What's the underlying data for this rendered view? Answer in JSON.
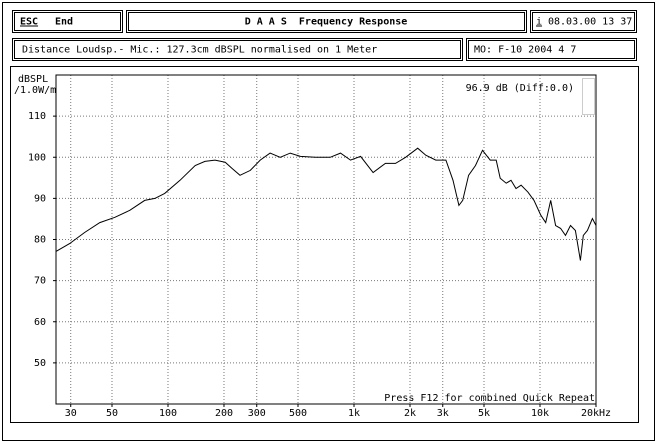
{
  "header": {
    "esc": "ESC",
    "end": "End",
    "title": "D A A S  Frequency Response",
    "info_icon": "i",
    "datetime": "08.03.00 13 37"
  },
  "info": {
    "distance": "Distance Loudsp.- Mic.: 127.3cm dBSPL normalised on 1 Meter",
    "mo": "MO: F-10 2004 4 7"
  },
  "chart_data": {
    "type": "line",
    "y_label": "dBSPL",
    "y_label_unit": "/1.0W/m",
    "annotation": "96.9 dB (Diff:0.0)",
    "footnote": "Press F12 for combined Quick Repeat",
    "x": [
      25,
      29.6,
      35.6,
      43,
      51.8,
      62.3,
      75,
      85,
      96,
      116,
      140,
      158,
      179,
      203,
      221,
      244,
      277,
      313,
      354,
      401,
      454,
      515,
      620,
      745,
      846,
      958,
      1085,
      1267,
      1476,
      1672,
      1894,
      2201,
      2431,
      2754,
      3118,
      3405,
      3665,
      3839,
      4132,
      4500,
      4906,
      5400,
      5812,
      6110,
      6578,
      6980,
      7432,
      7910,
      8617,
      9283,
      10100,
      10730,
      11410,
      12130,
      12900,
      13710,
      14580,
      15500,
      16480,
      17100,
      17980,
      19130,
      20000
    ],
    "series": [
      {
        "name": "Response",
        "color": "#000000",
        "values": [
          77.1,
          79,
          81.7,
          84.1,
          85.4,
          87.1,
          89.5,
          90,
          91.2,
          94.4,
          98,
          99,
          99.3,
          98.8,
          97.3,
          95.6,
          96.8,
          99.3,
          101,
          100,
          101,
          100.2,
          100,
          100,
          101,
          99.3,
          100.2,
          96.3,
          98.5,
          98.5,
          100,
          102.2,
          100.5,
          99.3,
          99.3,
          94.4,
          88.3,
          89.5,
          95.6,
          98,
          101.7,
          99.3,
          99.3,
          94.9,
          93.7,
          94.4,
          92.4,
          93.2,
          91.5,
          89.5,
          85.9,
          84.1,
          89.5,
          83.4,
          82.7,
          81,
          83.4,
          82.2,
          74.9,
          81,
          82.2,
          85.1,
          83.4
        ]
      }
    ],
    "xscale": "log",
    "xlim": [
      25,
      20000
    ],
    "xticks": [
      30,
      50,
      100,
      200,
      300,
      500,
      {
        "value": 1000,
        "label": "1k"
      },
      {
        "value": 2000,
        "label": "2k"
      },
      {
        "value": 3000,
        "label": "3k"
      },
      {
        "value": 5000,
        "label": "5k"
      },
      {
        "value": 10000,
        "label": "10k"
      },
      {
        "value": 20000,
        "label": "20kHz"
      }
    ],
    "ylim": [
      40,
      120
    ],
    "yticks": [
      50,
      60,
      70,
      80,
      90,
      100,
      110
    ],
    "grid": true
  }
}
